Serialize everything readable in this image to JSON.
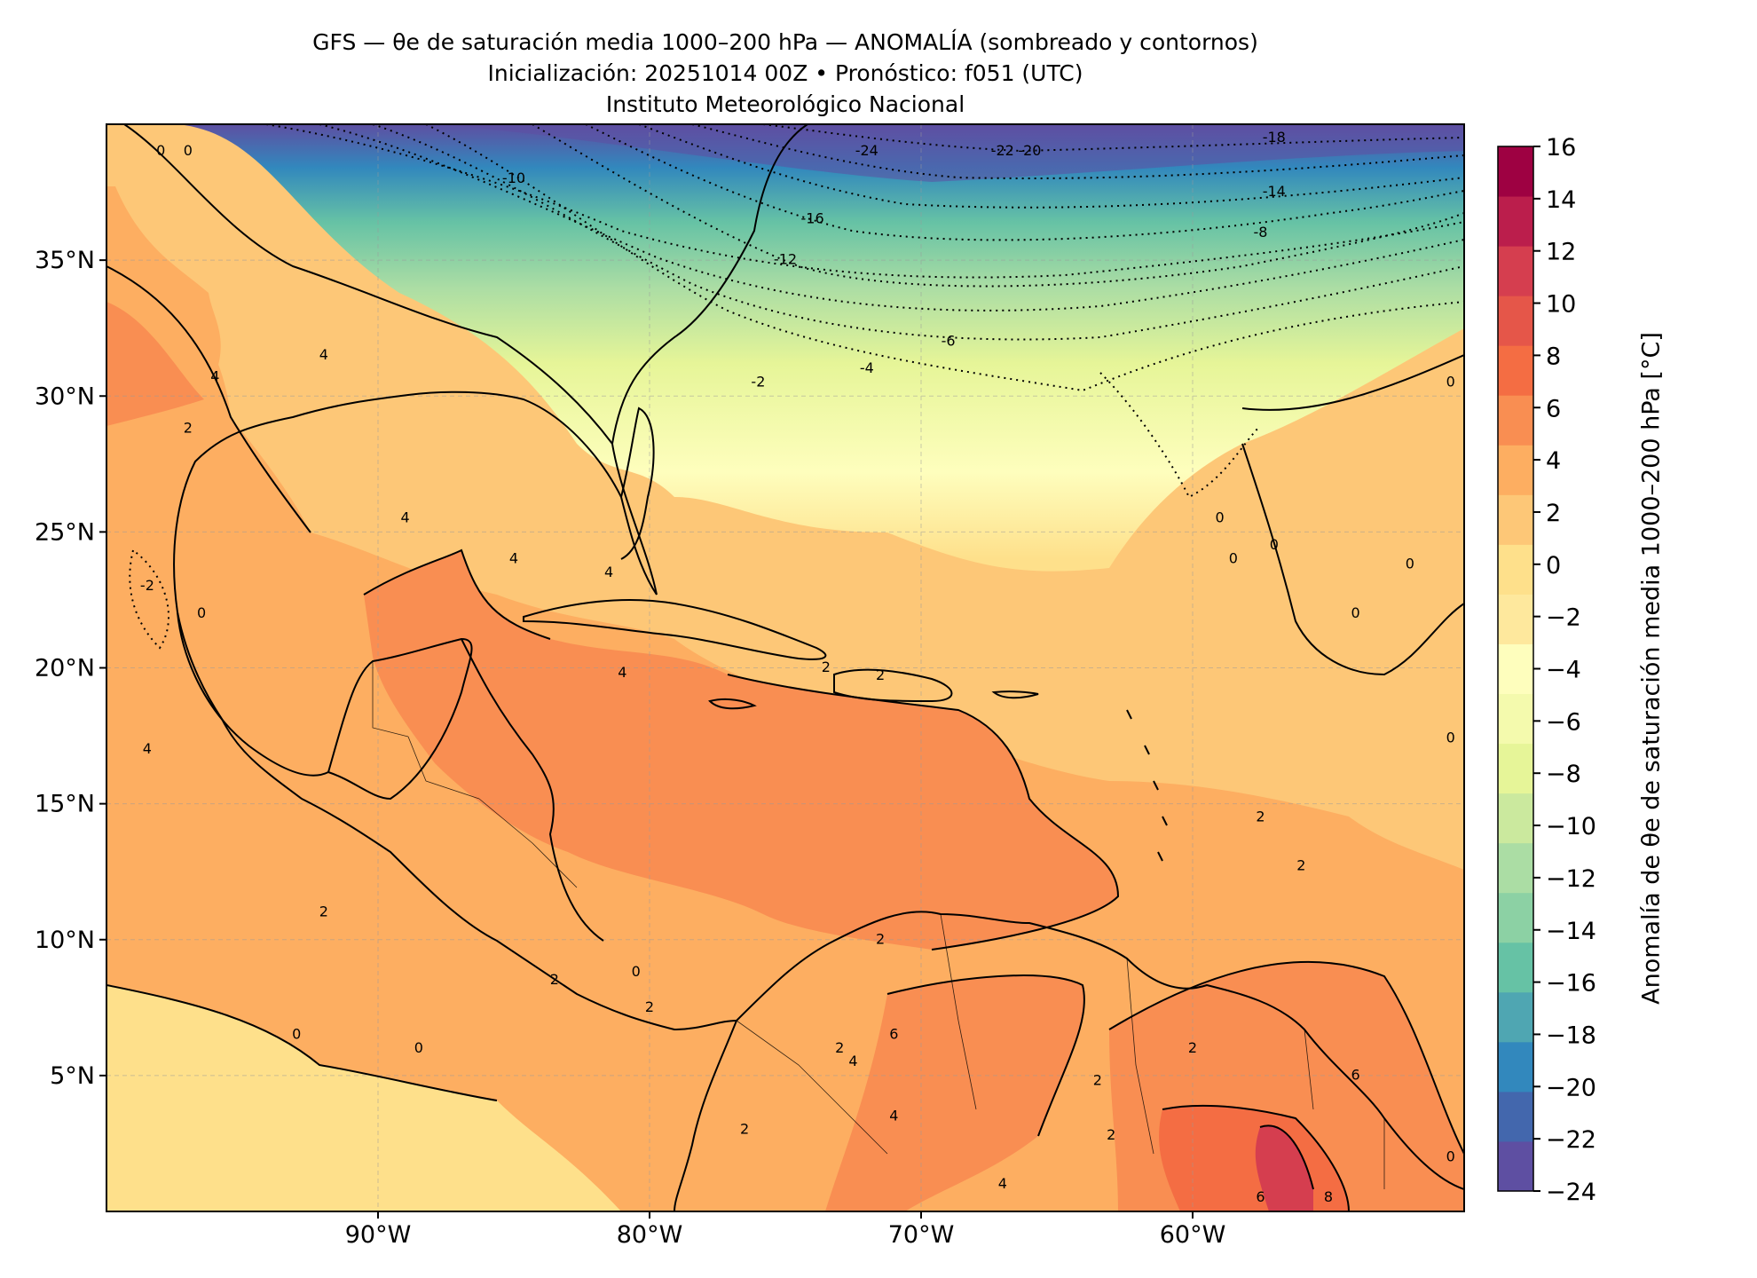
{
  "figure": {
    "title_lines": [
      "GFS — θe de saturación media 1000–200 hPa — ANOMALÍA (sombreado y contornos)",
      "Inicialización: 20251014 00Z   •   Pronóstico: f051 (UTC)",
      "Instituto Meteorológico Nacional"
    ]
  },
  "map": {
    "lon_range": [
      -100,
      -50
    ],
    "lat_range": [
      0,
      40
    ],
    "lon_ticks": [
      {
        "value": -90,
        "label": "90°W"
      },
      {
        "value": -80,
        "label": "80°W"
      },
      {
        "value": -70,
        "label": "70°W"
      },
      {
        "value": -60,
        "label": "60°W"
      }
    ],
    "lat_ticks": [
      {
        "value": 35,
        "label": "35°N"
      },
      {
        "value": 30,
        "label": "30°N"
      },
      {
        "value": 25,
        "label": "25°N"
      },
      {
        "value": 20,
        "label": "20°N"
      },
      {
        "value": 15,
        "label": "15°N"
      },
      {
        "value": 10,
        "label": "10°N"
      },
      {
        "value": 5,
        "label": "5°N"
      }
    ],
    "grid": true,
    "contour_labels": [
      {
        "text": "0",
        "lon": -98,
        "lat": 39
      },
      {
        "text": "0",
        "lon": -97,
        "lat": 39
      },
      {
        "text": "-10",
        "lon": -85,
        "lat": 38
      },
      {
        "text": "-24",
        "lon": -72,
        "lat": 39
      },
      {
        "text": "-22",
        "lon": -67,
        "lat": 39
      },
      {
        "text": "-20",
        "lon": -66,
        "lat": 39
      },
      {
        "text": "-18",
        "lon": -57,
        "lat": 39.5
      },
      {
        "text": "-16",
        "lon": -74,
        "lat": 36.5
      },
      {
        "text": "-14",
        "lon": -57,
        "lat": 37.5
      },
      {
        "text": "-12",
        "lon": -75,
        "lat": 35
      },
      {
        "text": "-8",
        "lon": -57.5,
        "lat": 36
      },
      {
        "text": "-6",
        "lon": -69,
        "lat": 32
      },
      {
        "text": "-4",
        "lon": -72,
        "lat": 31
      },
      {
        "text": "-2",
        "lon": -76,
        "lat": 30.5
      },
      {
        "text": "0",
        "lon": -50.5,
        "lat": 30.5
      },
      {
        "text": "4",
        "lon": -96,
        "lat": 30.7
      },
      {
        "text": "4",
        "lon": -92,
        "lat": 31.5
      },
      {
        "text": "2",
        "lon": -97,
        "lat": 28.8
      },
      {
        "text": "4",
        "lon": -89,
        "lat": 25.5
      },
      {
        "text": "4",
        "lon": -85,
        "lat": 24
      },
      {
        "text": "4",
        "lon": -81.5,
        "lat": 23.5
      },
      {
        "text": "-2",
        "lon": -98.5,
        "lat": 23
      },
      {
        "text": "0",
        "lon": -96.5,
        "lat": 22
      },
      {
        "text": "0",
        "lon": -59,
        "lat": 25.5
      },
      {
        "text": "0",
        "lon": -57,
        "lat": 24.5
      },
      {
        "text": "0",
        "lon": -58.5,
        "lat": 24
      },
      {
        "text": "0",
        "lon": -52,
        "lat": 23.8
      },
      {
        "text": "0",
        "lon": -54,
        "lat": 22
      },
      {
        "text": "4",
        "lon": -81,
        "lat": 19.8
      },
      {
        "text": "2",
        "lon": -73.5,
        "lat": 20
      },
      {
        "text": "2",
        "lon": -71.5,
        "lat": 19.7
      },
      {
        "text": "4",
        "lon": -98.5,
        "lat": 17
      },
      {
        "text": "0",
        "lon": -50.5,
        "lat": 17.4
      },
      {
        "text": "2",
        "lon": -57.5,
        "lat": 14.5
      },
      {
        "text": "2",
        "lon": -56,
        "lat": 12.7
      },
      {
        "text": "2",
        "lon": -92,
        "lat": 11
      },
      {
        "text": "2",
        "lon": -71.5,
        "lat": 10
      },
      {
        "text": "0",
        "lon": -80.5,
        "lat": 8.8
      },
      {
        "text": "2",
        "lon": -83.5,
        "lat": 8.5
      },
      {
        "text": "2",
        "lon": -80,
        "lat": 7.5
      },
      {
        "text": "0",
        "lon": -93,
        "lat": 6.5
      },
      {
        "text": "0",
        "lon": -88.5,
        "lat": 6
      },
      {
        "text": "6",
        "lon": -71,
        "lat": 6.5
      },
      {
        "text": "2",
        "lon": -73,
        "lat": 6
      },
      {
        "text": "4",
        "lon": -72.5,
        "lat": 5.5
      },
      {
        "text": "2",
        "lon": -63.5,
        "lat": 4.8
      },
      {
        "text": "2",
        "lon": -60,
        "lat": 6
      },
      {
        "text": "6",
        "lon": -54,
        "lat": 5
      },
      {
        "text": "4",
        "lon": -71,
        "lat": 3.5
      },
      {
        "text": "2",
        "lon": -76.5,
        "lat": 3
      },
      {
        "text": "2",
        "lon": -63,
        "lat": 2.8
      },
      {
        "text": "4",
        "lon": -67,
        "lat": 1
      },
      {
        "text": "6",
        "lon": -57.5,
        "lat": 0.5
      },
      {
        "text": "8",
        "lon": -55,
        "lat": 0.5
      },
      {
        "text": "0",
        "lon": -50.5,
        "lat": 2
      }
    ]
  },
  "colorbar": {
    "label": "Anomalía de θe de saturación media 1000–200 hPa [°C]",
    "levels": [
      -24,
      -22,
      -20,
      -18,
      -16,
      -14,
      -12,
      -10,
      -8,
      -6,
      -4,
      -2,
      0,
      2,
      4,
      6,
      8,
      10,
      12,
      14,
      16
    ],
    "tick_labels": [
      "16",
      "14",
      "12",
      "10",
      "8",
      "6",
      "4",
      "2",
      "0",
      "−2",
      "−4",
      "−6",
      "−8",
      "−10",
      "−12",
      "−14",
      "−16",
      "−18",
      "−20",
      "−22",
      "−24"
    ],
    "colors": [
      "#5e4fa2",
      "#4367ad",
      "#3288bd",
      "#4fa6b2",
      "#66c2a5",
      "#8cd1a4",
      "#abdda4",
      "#cbe99e",
      "#e6f598",
      "#f4faad",
      "#fefebd",
      "#fee89d",
      "#fee08b",
      "#fdc777",
      "#fdae61",
      "#f98e52",
      "#f46d43",
      "#e55649",
      "#d53e4f",
      "#bb1e4c",
      "#9e0142"
    ]
  }
}
